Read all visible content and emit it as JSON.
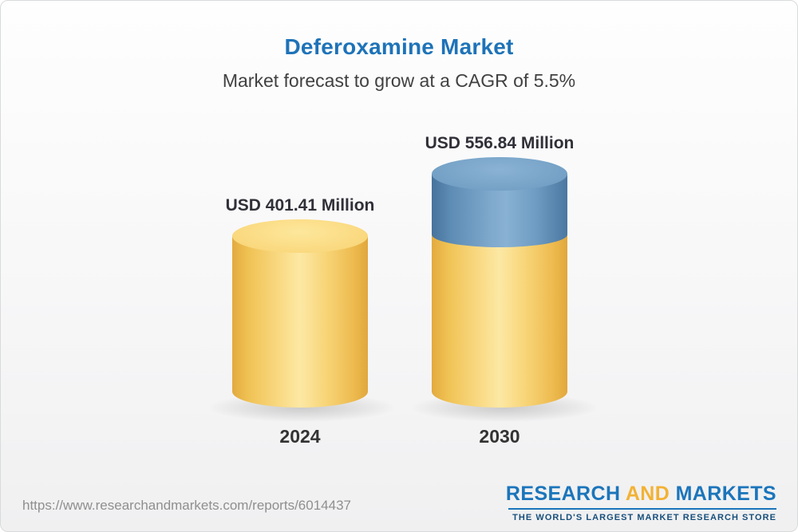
{
  "page": {
    "source_url": "https://www.researchandmarkets.com/reports/6014437"
  },
  "logo": {
    "word_research": "RESEARCH",
    "word_and": "AND",
    "word_markets": "MARKETS",
    "tagline": "THE WORLD'S LARGEST MARKET RESEARCH STORE",
    "color_blue": "#1b75bb",
    "color_gold": "#f2b234",
    "color_tagline": "#174f7c"
  },
  "chart_data": {
    "type": "bar",
    "title": "Deferoxamine Market",
    "subtitle": "Market forecast to grow at a CAGR of 5.5%",
    "unit": "USD Million",
    "cagr_percent": 5.5,
    "categories": [
      "2024",
      "2030"
    ],
    "values": [
      401.41,
      556.84
    ],
    "value_labels": [
      "USD 401.41 Million",
      "USD 556.84 Million"
    ],
    "series": [
      {
        "name": "Base market (yellow)",
        "color": "#f6c95f",
        "values": [
          401.41,
          401.41
        ]
      },
      {
        "name": "Forecast growth (blue)",
        "color": "#6596be",
        "values": [
          0,
          155.43
        ]
      }
    ],
    "legend": "none",
    "axes": "none",
    "ylim": [
      0,
      600
    ],
    "colors": {
      "bar_yellow": "#f6c95f",
      "bar_yellow_cap": "#fbdc85",
      "bar_blue": "#6596be",
      "bar_blue_cap": "#79a5c9",
      "title": "#1e73b8",
      "subtitle_text": "#414141",
      "label_text": "#303038"
    }
  }
}
